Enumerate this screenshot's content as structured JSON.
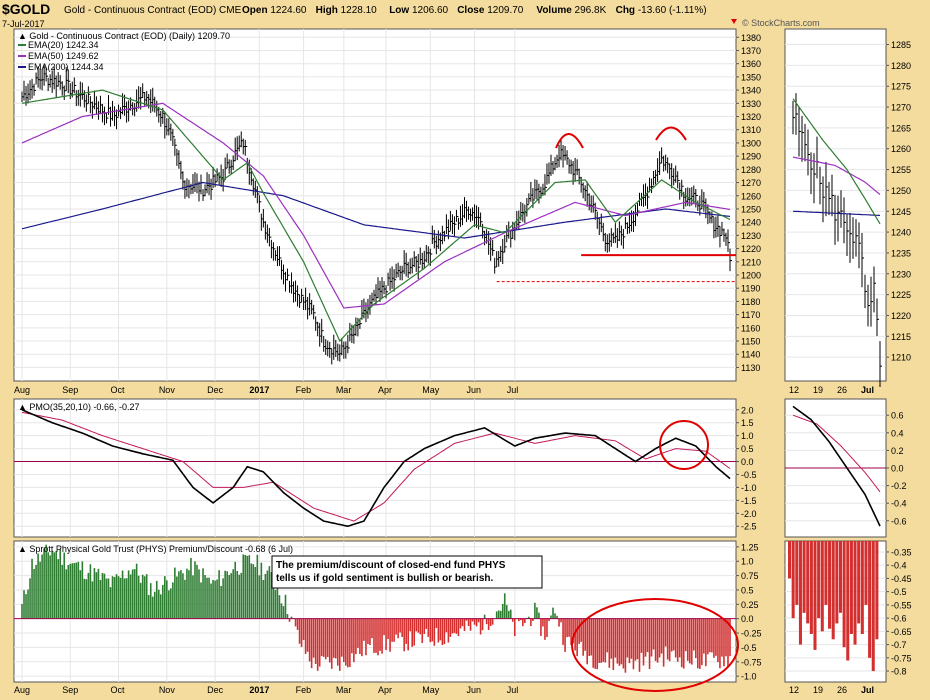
{
  "header": {
    "symbol": "$GOLD",
    "name": "Gold - Continuous Contract (EOD) CME",
    "date": "7-Jul-2017",
    "stats": [
      {
        "label": "Open",
        "value": "1224.60"
      },
      {
        "label": "High",
        "value": "1228.10"
      },
      {
        "label": "Low",
        "value": "1206.60"
      },
      {
        "label": "Close",
        "value": "1209.70"
      },
      {
        "label": "Volume",
        "value": "296.8K"
      },
      {
        "label": "Chg",
        "value": "-13.60 (-1.11%)"
      }
    ],
    "credit": "© StockCharts.com"
  },
  "colors": {
    "background": "#f4dc9e",
    "panel": "#ffffff",
    "ema20": "#2e7d32",
    "ema50": "#9b30c0",
    "ema200": "#1a1a8c",
    "signal": "#c2185b",
    "positive": "#2e7d32",
    "negative": "#d32f2f",
    "annotation": "#e00000"
  },
  "chart_data": [
    {
      "type": "line",
      "title": "Gold - Continuous Contract (EOD) (Daily) 1209.70",
      "legend": [
        "EMA(20) 1242.34",
        "EMA(50) 1249.62",
        "EMA(200) 1244.34"
      ],
      "x_labels": [
        "Aug",
        "Sep",
        "Oct",
        "Nov",
        "Dec",
        "2017",
        "Feb",
        "Mar",
        "Apr",
        "May",
        "Jun",
        "Jul"
      ],
      "y_ticks": [
        1130,
        1140,
        1150,
        1160,
        1170,
        1180,
        1190,
        1200,
        1210,
        1220,
        1230,
        1240,
        1250,
        1260,
        1270,
        1280,
        1290,
        1300,
        1310,
        1320,
        1330,
        1340,
        1350,
        1360,
        1370,
        1380
      ],
      "ylim": [
        1122,
        1384
      ],
      "price_key_points": [
        [
          0,
          1335
        ],
        [
          10,
          1350
        ],
        [
          20,
          1345
        ],
        [
          30,
          1335
        ],
        [
          45,
          1320
        ],
        [
          55,
          1330
        ],
        [
          62,
          1335
        ],
        [
          70,
          1320
        ],
        [
          75,
          1300
        ],
        [
          80,
          1270
        ],
        [
          90,
          1265
        ],
        [
          100,
          1275
        ],
        [
          105,
          1290
        ],
        [
          110,
          1300
        ],
        [
          115,
          1270
        ],
        [
          120,
          1240
        ],
        [
          128,
          1210
        ],
        [
          135,
          1190
        ],
        [
          145,
          1170
        ],
        [
          150,
          1150
        ],
        [
          158,
          1140
        ],
        [
          165,
          1155
        ],
        [
          172,
          1175
        ],
        [
          180,
          1190
        ],
        [
          190,
          1205
        ],
        [
          198,
          1210
        ],
        [
          205,
          1225
        ],
        [
          212,
          1235
        ],
        [
          222,
          1250
        ],
        [
          228,
          1242
        ],
        [
          235,
          1210
        ],
        [
          240,
          1225
        ],
        [
          250,
          1250
        ],
        [
          260,
          1270
        ],
        [
          267,
          1292
        ],
        [
          272,
          1285
        ],
        [
          278,
          1270
        ],
        [
          284,
          1250
        ],
        [
          290,
          1228
        ],
        [
          295,
          1225
        ],
        [
          300,
          1235
        ],
        [
          310,
          1260
        ],
        [
          318,
          1288
        ],
        [
          325,
          1275
        ],
        [
          330,
          1260
        ],
        [
          337,
          1255
        ],
        [
          343,
          1240
        ],
        [
          350,
          1230
        ],
        [
          352,
          1210
        ]
      ],
      "ema20": [
        [
          0,
          1330
        ],
        [
          40,
          1340
        ],
        [
          70,
          1325
        ],
        [
          100,
          1272
        ],
        [
          112,
          1285
        ],
        [
          120,
          1262
        ],
        [
          140,
          1210
        ],
        [
          158,
          1150
        ],
        [
          175,
          1178
        ],
        [
          200,
          1205
        ],
        [
          225,
          1238
        ],
        [
          240,
          1232
        ],
        [
          265,
          1270
        ],
        [
          280,
          1272
        ],
        [
          295,
          1240
        ],
        [
          318,
          1272
        ],
        [
          335,
          1255
        ],
        [
          352,
          1242
        ]
      ],
      "ema50": [
        [
          0,
          1300
        ],
        [
          30,
          1320
        ],
        [
          70,
          1330
        ],
        [
          100,
          1300
        ],
        [
          120,
          1275
        ],
        [
          140,
          1230
        ],
        [
          160,
          1175
        ],
        [
          180,
          1178
        ],
        [
          210,
          1210
        ],
        [
          240,
          1232
        ],
        [
          275,
          1255
        ],
        [
          300,
          1245
        ],
        [
          330,
          1255
        ],
        [
          352,
          1249.62
        ]
      ],
      "ema200": [
        [
          0,
          1235
        ],
        [
          40,
          1250
        ],
        [
          90,
          1270
        ],
        [
          130,
          1260
        ],
        [
          170,
          1238
        ],
        [
          220,
          1228
        ],
        [
          270,
          1240
        ],
        [
          320,
          1250
        ],
        [
          352,
          1244.34
        ]
      ],
      "support_line": 1215,
      "support_dashed": 1195
    },
    {
      "type": "line",
      "title": "PMO(35,20,10) -0.66, -0.27",
      "y_ticks": [
        -2.5,
        -2.0,
        -1.5,
        -1.0,
        -0.5,
        0.0,
        0.5,
        1.0,
        1.5,
        2.0
      ],
      "ylim": [
        -2.8,
        2.3
      ],
      "pmo": [
        [
          0,
          2.0
        ],
        [
          15,
          1.5
        ],
        [
          30,
          1.1
        ],
        [
          45,
          0.6
        ],
        [
          60,
          0.3
        ],
        [
          75,
          0.05
        ],
        [
          85,
          -1.0
        ],
        [
          95,
          -1.6
        ],
        [
          105,
          -1.0
        ],
        [
          112,
          -0.2
        ],
        [
          120,
          -0.4
        ],
        [
          130,
          -1.2
        ],
        [
          140,
          -1.8
        ],
        [
          150,
          -2.3
        ],
        [
          162,
          -2.5
        ],
        [
          170,
          -2.3
        ],
        [
          180,
          -1.0
        ],
        [
          190,
          0.0
        ],
        [
          200,
          0.5
        ],
        [
          215,
          1.0
        ],
        [
          230,
          1.3
        ],
        [
          245,
          0.6
        ],
        [
          255,
          0.9
        ],
        [
          270,
          1.1
        ],
        [
          285,
          1.0
        ],
        [
          295,
          0.5
        ],
        [
          305,
          0.0
        ],
        [
          315,
          0.5
        ],
        [
          325,
          0.9
        ],
        [
          335,
          0.6
        ],
        [
          345,
          -0.2
        ],
        [
          352,
          -0.66
        ]
      ],
      "signal": [
        [
          0,
          1.9
        ],
        [
          20,
          1.6
        ],
        [
          40,
          1.0
        ],
        [
          60,
          0.5
        ],
        [
          80,
          0.0
        ],
        [
          95,
          -1.0
        ],
        [
          110,
          -1.0
        ],
        [
          125,
          -0.8
        ],
        [
          145,
          -1.8
        ],
        [
          165,
          -2.3
        ],
        [
          180,
          -1.6
        ],
        [
          195,
          -0.3
        ],
        [
          215,
          0.7
        ],
        [
          235,
          1.1
        ],
        [
          255,
          0.7
        ],
        [
          275,
          1.0
        ],
        [
          295,
          0.8
        ],
        [
          310,
          0.1
        ],
        [
          325,
          0.5
        ],
        [
          340,
          0.4
        ],
        [
          352,
          -0.27
        ]
      ]
    },
    {
      "type": "bar",
      "title": "Sprott Physical Gold Trust (PHYS) Premium/Discount -0.68 (6 Jul)",
      "annotation": "The premium/discount of closed-end fund PHYS tells us if gold sentiment is bullish or bearish.",
      "y_ticks": [
        -1.0,
        -0.75,
        -0.5,
        -0.25,
        0.0,
        0.25,
        0.5,
        0.75,
        1.0,
        1.25
      ],
      "ylim": [
        -1.05,
        1.3
      ],
      "segments": [
        [
          0,
          0.2
        ],
        [
          5,
          0.95
        ],
        [
          15,
          1.2
        ],
        [
          25,
          0.95
        ],
        [
          35,
          0.8
        ],
        [
          45,
          0.6
        ],
        [
          55,
          0.9
        ],
        [
          65,
          0.5
        ],
        [
          75,
          0.7
        ],
        [
          85,
          0.9
        ],
        [
          95,
          0.6
        ],
        [
          105,
          0.9
        ],
        [
          115,
          1.0
        ],
        [
          125,
          0.7
        ],
        [
          132,
          0.2
        ],
        [
          138,
          -0.4
        ],
        [
          145,
          -0.8
        ],
        [
          160,
          -0.75
        ],
        [
          172,
          -0.5
        ],
        [
          190,
          -0.4
        ],
        [
          210,
          -0.3
        ],
        [
          230,
          -0.1
        ],
        [
          240,
          0.3
        ],
        [
          245,
          -0.2
        ],
        [
          255,
          0.1
        ],
        [
          260,
          -0.3
        ],
        [
          265,
          0.2
        ],
        [
          270,
          -0.4
        ],
        [
          285,
          -0.7
        ],
        [
          300,
          -0.8
        ],
        [
          320,
          -0.65
        ],
        [
          340,
          -0.75
        ],
        [
          352,
          -0.68
        ]
      ]
    },
    {
      "type": "line",
      "title": "",
      "x_labels": [
        "12",
        "19",
        "26",
        "Jul"
      ],
      "y_ticks": [
        1210,
        1215,
        1220,
        1225,
        1230,
        1235,
        1240,
        1245,
        1250,
        1255,
        1260,
        1265,
        1270,
        1275,
        1280,
        1285
      ],
      "ylim": [
        1205,
        1288
      ],
      "price_key_points": [
        [
          0,
          1268
        ],
        [
          3,
          1262
        ],
        [
          6,
          1258
        ],
        [
          9,
          1252
        ],
        [
          12,
          1248
        ],
        [
          15,
          1244
        ],
        [
          18,
          1242
        ],
        [
          21,
          1238
        ],
        [
          23,
          1232
        ],
        [
          25,
          1220
        ],
        [
          27,
          1225
        ],
        [
          29,
          1210
        ]
      ],
      "ema20": [
        [
          0,
          1272
        ],
        [
          10,
          1262
        ],
        [
          18,
          1255
        ],
        [
          24,
          1248
        ],
        [
          29,
          1242
        ]
      ],
      "ema50": [
        [
          0,
          1258
        ],
        [
          14,
          1256
        ],
        [
          24,
          1252
        ],
        [
          29,
          1249
        ]
      ],
      "ema200": [
        [
          0,
          1245
        ],
        [
          29,
          1244
        ]
      ]
    },
    {
      "type": "line",
      "title": "",
      "y_ticks": [
        -0.6,
        -0.4,
        -0.2,
        0.0,
        0.2,
        0.4,
        0.6
      ],
      "ylim": [
        -0.75,
        0.75
      ],
      "pmo": [
        [
          0,
          0.7
        ],
        [
          6,
          0.55
        ],
        [
          12,
          0.3
        ],
        [
          18,
          0.0
        ],
        [
          24,
          -0.3
        ],
        [
          29,
          -0.66
        ]
      ],
      "signal": [
        [
          0,
          0.6
        ],
        [
          8,
          0.5
        ],
        [
          16,
          0.25
        ],
        [
          24,
          -0.05
        ],
        [
          29,
          -0.27
        ]
      ]
    },
    {
      "type": "bar",
      "title": "",
      "y_ticks": [
        -0.35,
        -0.4,
        -0.45,
        -0.5,
        -0.55,
        -0.6,
        -0.65,
        -0.7,
        -0.75,
        -0.8
      ],
      "ylim": [
        -0.83,
        -0.32
      ],
      "values": [
        -0.45,
        -0.6,
        -0.55,
        -0.7,
        -0.58,
        -0.62,
        -0.66,
        -0.72,
        -0.6,
        -0.65,
        -0.55,
        -0.64,
        -0.68,
        -0.62,
        -0.58,
        -0.71,
        -0.76,
        -0.66,
        -0.7,
        -0.62,
        -0.66,
        -0.55,
        -0.75,
        -0.8,
        -0.68
      ]
    }
  ]
}
